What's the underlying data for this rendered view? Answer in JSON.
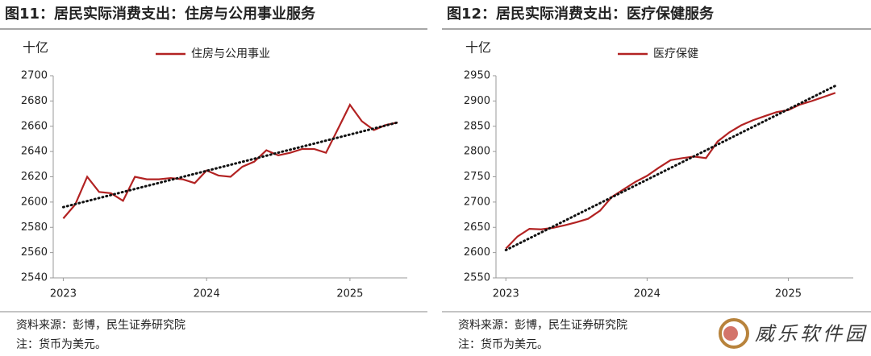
{
  "chart_data": [
    {
      "type": "line",
      "title": "图11：居民实际消费支出：住房与公用事业服务",
      "unit": "十亿",
      "x": [
        2023,
        2023.083,
        2023.167,
        2023.25,
        2023.333,
        2023.417,
        2023.5,
        2023.583,
        2023.667,
        2023.75,
        2023.833,
        2023.917,
        2024,
        2024.083,
        2024.167,
        2024.25,
        2024.333,
        2024.417,
        2024.5,
        2024.583,
        2024.667,
        2024.75,
        2024.833,
        2024.917,
        2025,
        2025.083,
        2025.167,
        2025.25,
        2025.333
      ],
      "series": [
        {
          "name": "住房与公用事业",
          "color": "#b22222",
          "values": [
            2587,
            2598,
            2620,
            2608,
            2607,
            2601,
            2620,
            2618,
            2618,
            2619,
            2618,
            2615,
            2625,
            2621,
            2620,
            2628,
            2632,
            2641,
            2637,
            2639,
            2642,
            2642,
            2639,
            2658,
            2677,
            2664,
            2657,
            2661,
            2663
          ]
        }
      ],
      "trend": {
        "x": [
          2023,
          2025.333
        ],
        "values": [
          2596,
          2663
        ]
      },
      "xlim": [
        2022.93,
        2025.4
      ],
      "xticks": [
        2023,
        2024,
        2025
      ],
      "ylim": [
        2540,
        2700
      ],
      "yticks": [
        2540,
        2560,
        2580,
        2600,
        2620,
        2640,
        2660,
        2680,
        2700
      ],
      "source": "资料来源：彭博，民生证券研究院",
      "note": "注：货币为美元。"
    },
    {
      "type": "line",
      "title": "图12：居民实际消费支出：医疗保健服务",
      "unit": "十亿",
      "x": [
        2023,
        2023.083,
        2023.167,
        2023.25,
        2023.333,
        2023.417,
        2023.5,
        2023.583,
        2023.667,
        2023.75,
        2023.833,
        2023.917,
        2024,
        2024.083,
        2024.167,
        2024.25,
        2024.333,
        2024.417,
        2024.5,
        2024.583,
        2024.667,
        2024.75,
        2024.833,
        2024.917,
        2025,
        2025.083,
        2025.167,
        2025.25,
        2025.333
      ],
      "series": [
        {
          "name": "医疗保健",
          "color": "#b22222",
          "values": [
            2608,
            2632,
            2647,
            2646,
            2649,
            2654,
            2660,
            2667,
            2683,
            2710,
            2725,
            2740,
            2752,
            2768,
            2783,
            2787,
            2790,
            2787,
            2820,
            2838,
            2852,
            2862,
            2870,
            2878,
            2882,
            2893,
            2900,
            2908,
            2916
          ]
        }
      ],
      "trend": {
        "x": [
          2023,
          2025.333
        ],
        "values": [
          2605,
          2930
        ]
      },
      "xlim": [
        2022.93,
        2025.46
      ],
      "xticks": [
        2023,
        2024,
        2025
      ],
      "ylim": [
        2550,
        2950
      ],
      "yticks": [
        2550,
        2600,
        2650,
        2700,
        2750,
        2800,
        2850,
        2900,
        2950
      ],
      "source": "资料来源：彭博，民生证券研究院",
      "note": "注：货币为美元。"
    }
  ],
  "watermark": "威乐软件园"
}
